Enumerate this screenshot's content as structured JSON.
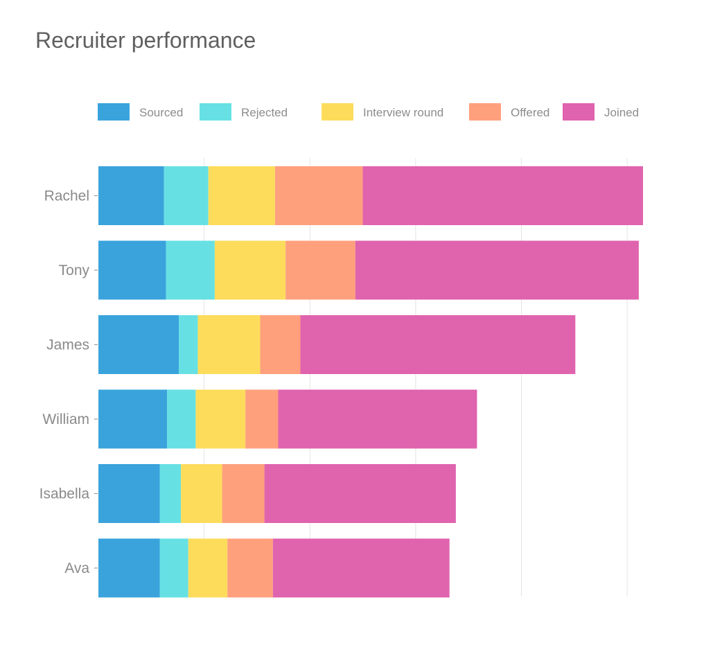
{
  "chart_data": {
    "type": "bar",
    "orientation": "horizontal",
    "stacked": true,
    "title": "Recruiter performance",
    "xlabel": "",
    "ylabel": "",
    "xlim": [
      0,
      515
    ],
    "grid": true,
    "legend_position": "top",
    "categories": [
      "Rachel",
      "Tony",
      "James",
      "William",
      "Isabella",
      "Ava"
    ],
    "series": [
      {
        "name": "Sourced",
        "color": "#3aa3dc",
        "values": [
          62,
          64,
          76,
          65,
          58,
          58
        ]
      },
      {
        "name": "Rejected",
        "color": "#67e0e4",
        "values": [
          42,
          46,
          18,
          27,
          20,
          27
        ]
      },
      {
        "name": "Interview round",
        "color": "#fddc5c",
        "values": [
          63,
          67,
          59,
          47,
          39,
          37
        ]
      },
      {
        "name": "Offered",
        "color": "#ffa07d",
        "values": [
          83,
          66,
          38,
          31,
          40,
          43
        ]
      },
      {
        "name": "Joined",
        "color": "#e063ae",
        "values": [
          265,
          268,
          260,
          188,
          181,
          167
        ]
      }
    ]
  }
}
